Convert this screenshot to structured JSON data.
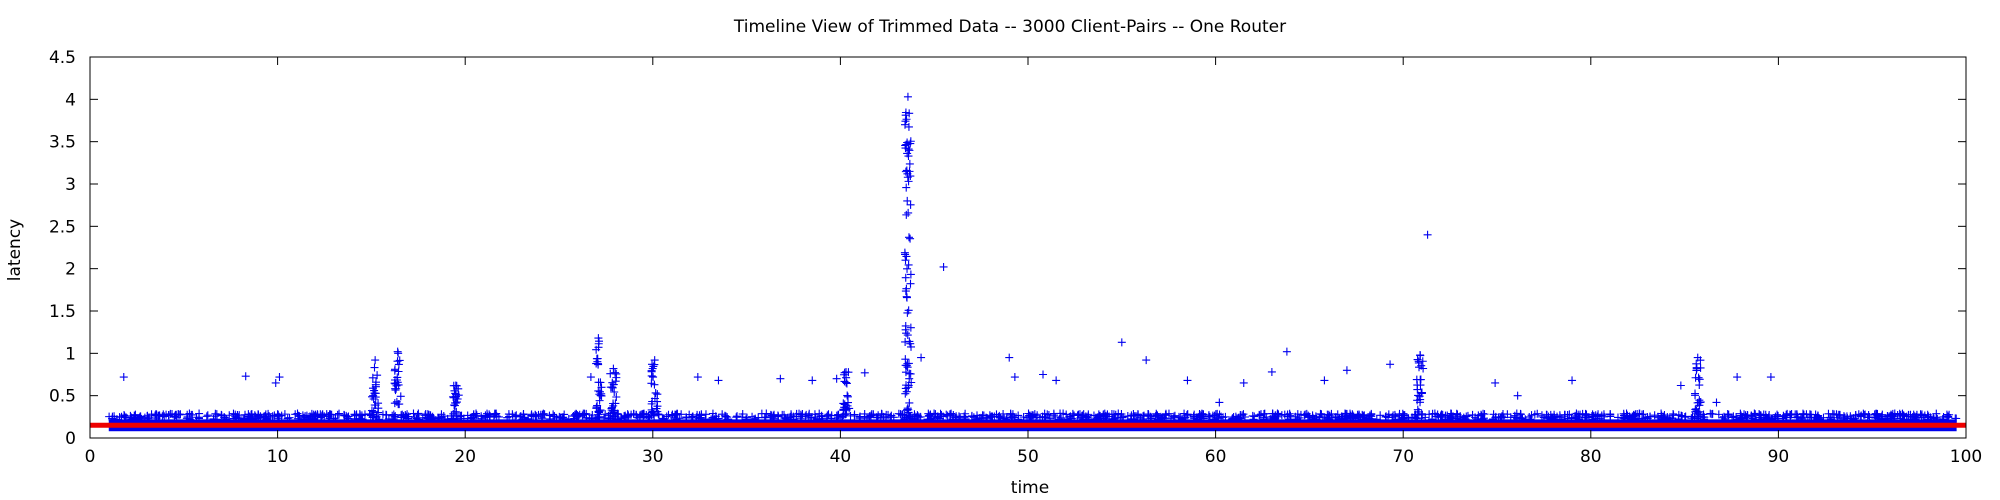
{
  "chart_data": {
    "type": "scatter",
    "title": "Timeline View of Trimmed Data -- 3000 Client-Pairs -- One Router",
    "xlabel": "time",
    "ylabel": "latency",
    "xlim": [
      0,
      100
    ],
    "ylim": [
      0,
      4.5
    ],
    "x_ticks": [
      "0",
      "10",
      "20",
      "30",
      "40",
      "50",
      "60",
      "70",
      "80",
      "90",
      "100"
    ],
    "y_ticks": [
      "0",
      "0.5",
      "1",
      "1.5",
      "2",
      "2.5",
      "3",
      "3.5",
      "4",
      "4.5"
    ],
    "grid": false,
    "legend": "none",
    "marker": "plus",
    "colors": {
      "points": "#0000ee",
      "baseline": "#ee0000"
    },
    "baseline": {
      "y": 0.15,
      "x_range": [
        0,
        100
      ]
    },
    "baseline_band": {
      "x_range": [
        1,
        99.5
      ],
      "y_range": [
        0.08,
        0.22
      ]
    },
    "clusters": [
      {
        "x": 15.2,
        "y_min": 0.3,
        "y_max": 0.92
      },
      {
        "x": 16.4,
        "y_min": 0.4,
        "y_max": 1.02
      },
      {
        "x": 19.5,
        "y_min": 0.3,
        "y_max": 0.62
      },
      {
        "x": 27.1,
        "y_min": 0.3,
        "y_max": 1.18
      },
      {
        "x": 27.9,
        "y_min": 0.3,
        "y_max": 0.82
      },
      {
        "x": 30.1,
        "y_min": 0.3,
        "y_max": 0.92
      },
      {
        "x": 40.3,
        "y_min": 0.3,
        "y_max": 0.78
      },
      {
        "x": 43.6,
        "y_min": 0.3,
        "y_max": 4.03
      },
      {
        "x": 70.9,
        "y_min": 0.3,
        "y_max": 0.98
      },
      {
        "x": 85.7,
        "y_min": 0.3,
        "y_max": 0.95
      }
    ],
    "points": [
      [
        1.8,
        0.72
      ],
      [
        8.3,
        0.73
      ],
      [
        9.9,
        0.65
      ],
      [
        10.1,
        0.72
      ],
      [
        26.7,
        0.72
      ],
      [
        32.4,
        0.72
      ],
      [
        33.5,
        0.68
      ],
      [
        36.8,
        0.7
      ],
      [
        38.5,
        0.68
      ],
      [
        39.8,
        0.7
      ],
      [
        41.3,
        0.77
      ],
      [
        44.3,
        0.95
      ],
      [
        45.5,
        2.02
      ],
      [
        49.0,
        0.95
      ],
      [
        49.3,
        0.72
      ],
      [
        50.8,
        0.75
      ],
      [
        51.5,
        0.68
      ],
      [
        55.0,
        1.13
      ],
      [
        56.3,
        0.92
      ],
      [
        58.5,
        0.68
      ],
      [
        60.2,
        0.42
      ],
      [
        61.5,
        0.65
      ],
      [
        63.0,
        0.78
      ],
      [
        63.8,
        1.02
      ],
      [
        65.8,
        0.68
      ],
      [
        67.0,
        0.8
      ],
      [
        69.3,
        0.87
      ],
      [
        71.3,
        2.4
      ],
      [
        74.9,
        0.65
      ],
      [
        76.1,
        0.5
      ],
      [
        79.0,
        0.68
      ],
      [
        84.8,
        0.62
      ],
      [
        86.7,
        0.42
      ],
      [
        87.8,
        0.72
      ],
      [
        89.6,
        0.72
      ]
    ]
  }
}
